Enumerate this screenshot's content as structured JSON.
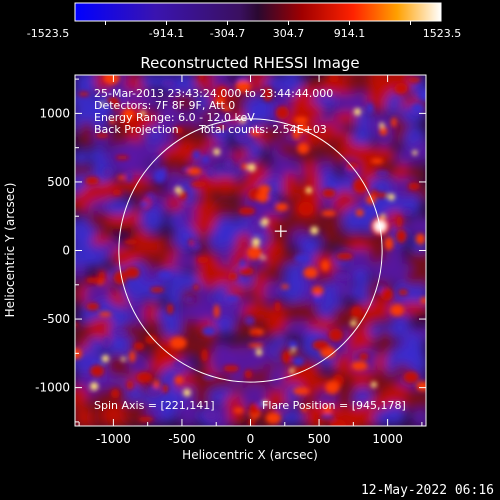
{
  "colorbar": {
    "ticks": [
      "-1523.5",
      "-914.1",
      "-304.7",
      "304.7",
      "914.1",
      "1523.5"
    ],
    "stops": [
      {
        "offset": 0.0,
        "color": "#0000ff"
      },
      {
        "offset": 0.22,
        "color": "#3a14b0"
      },
      {
        "offset": 0.45,
        "color": "#3a1060"
      },
      {
        "offset": 0.5,
        "color": "#2a0830"
      },
      {
        "offset": 0.62,
        "color": "#a00000"
      },
      {
        "offset": 0.76,
        "color": "#ff2200"
      },
      {
        "offset": 0.88,
        "color": "#ffa000"
      },
      {
        "offset": 1.0,
        "color": "#ffffff"
      }
    ]
  },
  "image_map": {
    "background_color": "#2e0a3a",
    "blob_colors": {
      "hot": "#ffe27a",
      "warm": "#ff3b00",
      "red": "#c80e00",
      "dark_red": "#7a0a18",
      "purple": "#5a1aa6",
      "blue": "#3a2bd0"
    },
    "circle_color": "#ffffff",
    "annotations": {
      "line1": "25-Mar-2013 23:43:24.000 to 23:44:44.000",
      "line2": "Detectors: 7F 8F 9F, Att 0",
      "line3": "Energy Range: 6.0 - 12.0 keV",
      "line4a": "Back Projection",
      "line4b": "Total counts: 2.54E+03",
      "spin_axis": "Spin Axis = [221,141]",
      "flare_position": "Flare Position = [945,178]"
    }
  },
  "chart_data": {
    "type": "heatmap",
    "title": "Reconstructed RHESSI Image",
    "xlabel": "Heliocentric X (arcsec)",
    "ylabel": "Heliocentric Y (arcsec)",
    "xlim": [
      -1280,
      1280
    ],
    "ylim": [
      -1280,
      1280
    ],
    "xticks": [
      -1000,
      -500,
      0,
      500,
      1000
    ],
    "yticks": [
      -1000,
      -500,
      0,
      500,
      1000
    ],
    "xtick_labels": [
      "-1000",
      "-500",
      "0",
      "500",
      "1000"
    ],
    "ytick_labels": [
      "-1000",
      "-500",
      "0",
      "500",
      "1000"
    ],
    "colorbar_range": [
      -1523.5,
      1523.5
    ],
    "solar_limb": {
      "center": [
        0,
        0
      ],
      "radius": 960
    },
    "spin_axis": [
      221,
      141
    ],
    "flare_position": [
      945,
      178
    ],
    "grid": false
  },
  "footer": {
    "timestamp": "12-May-2022 06:16"
  }
}
